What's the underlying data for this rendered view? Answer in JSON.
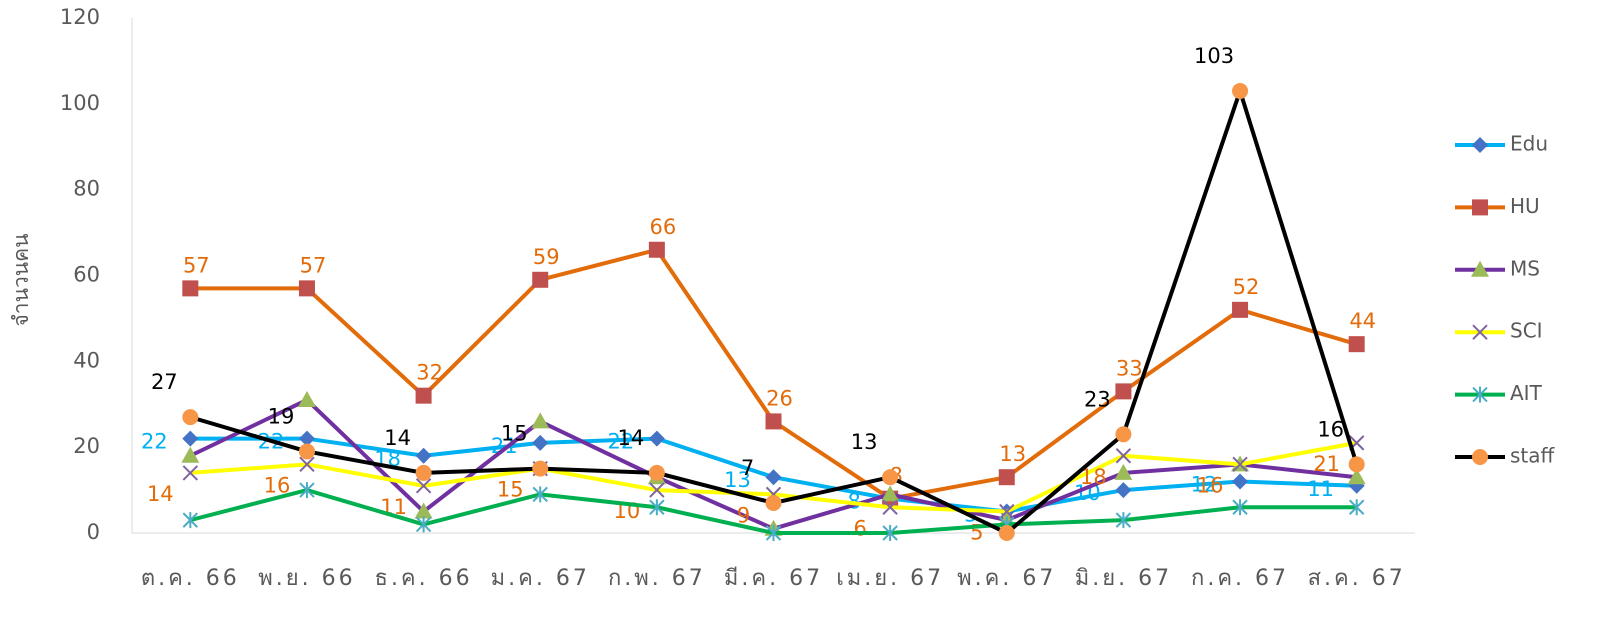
{
  "chart_data": {
    "type": "line",
    "y_label": "จำนวนคน",
    "categories": [
      "ต.ค. 66",
      "พ.ย. 66",
      "ธ.ค. 66",
      "ม.ค. 67",
      "ก.พ. 67",
      "มี.ค. 67",
      "เม.ย. 67",
      "พ.ค. 67",
      "มิ.ย. 67",
      "ก.ค. 67",
      "ส.ค. 67"
    ],
    "ylim": [
      0,
      120
    ],
    "yticks": [
      0,
      20,
      40,
      60,
      80,
      100,
      120
    ],
    "series": [
      {
        "name": "Edu",
        "color": "#00b0f0",
        "marker": "diamond",
        "marker_color": "#4472c4",
        "label_color": "#00b0f0",
        "values": [
          22,
          22,
          18,
          21,
          22,
          13,
          8,
          5,
          10,
          12,
          11
        ]
      },
      {
        "name": "HU",
        "color": "#e36c0a",
        "marker": "square",
        "marker_color": "#c0504d",
        "label_color": "#e36c0a",
        "values": [
          57,
          57,
          32,
          59,
          66,
          26,
          8,
          13,
          33,
          52,
          44
        ]
      },
      {
        "name": "MS",
        "color": "#7030a0",
        "marker": "triangle",
        "marker_color": "#9bbb59",
        "values": [
          18,
          31,
          5,
          26,
          13,
          1,
          9,
          3,
          14,
          16,
          13
        ]
      },
      {
        "name": "SCI",
        "color": "#ffff00",
        "marker": "cross",
        "marker_color": "#8064a2",
        "label_color": "#e36c0a",
        "values": [
          14,
          16,
          11,
          15,
          10,
          9,
          6,
          5,
          18,
          16,
          21
        ]
      },
      {
        "name": "AIT",
        "color": "#00b050",
        "marker": "star",
        "marker_color": "#4bacc6",
        "values": [
          3,
          10,
          2,
          9,
          6,
          0,
          0,
          2,
          3,
          6,
          6
        ]
      },
      {
        "name": "staff",
        "color": "#000000",
        "marker": "circle",
        "marker_color": "#f79646",
        "label_color": "#000000",
        "values": [
          27,
          19,
          14,
          15,
          14,
          7,
          13,
          0,
          23,
          103,
          16
        ],
        "value_labels": [
          "27",
          "19",
          "14",
          "15",
          "14",
          "7",
          "13",
          null,
          "23",
          "103",
          "16"
        ]
      }
    ]
  }
}
